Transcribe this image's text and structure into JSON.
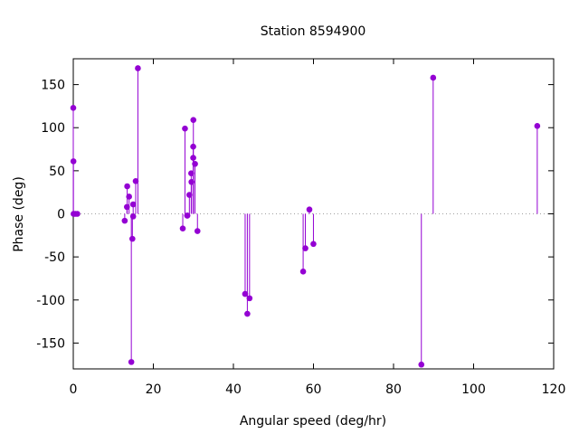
{
  "chart_data": {
    "type": "scatter",
    "style": "impulses-with-points",
    "title": "Station 8594900",
    "xlabel": "Angular speed (deg/hr)",
    "ylabel": "Phase (deg)",
    "xlim": [
      0,
      120
    ],
    "ylim": [
      -180,
      180
    ],
    "xticks": [
      0,
      20,
      40,
      60,
      80,
      100,
      120
    ],
    "yticks": [
      -150,
      -100,
      -50,
      0,
      50,
      100,
      150
    ],
    "grid": false,
    "zero_line": true,
    "color": "#9400d3",
    "series": [
      {
        "points": [
          {
            "x": 0.0,
            "y": 123
          },
          {
            "x": 0.04,
            "y": 61
          },
          {
            "x": 0.08,
            "y": 0
          },
          {
            "x": 0.5,
            "y": 0
          },
          {
            "x": 1.0,
            "y": 0
          },
          {
            "x": 12.85,
            "y": -8
          },
          {
            "x": 13.4,
            "y": 8
          },
          {
            "x": 13.47,
            "y": 32
          },
          {
            "x": 13.94,
            "y": 20
          },
          {
            "x": 14.5,
            "y": -172
          },
          {
            "x": 14.76,
            "y": -29
          },
          {
            "x": 14.96,
            "y": 11
          },
          {
            "x": 14.96,
            "y": -3
          },
          {
            "x": 15.59,
            "y": 38
          },
          {
            "x": 16.14,
            "y": 169
          },
          {
            "x": 27.35,
            "y": -17
          },
          {
            "x": 27.9,
            "y": 99
          },
          {
            "x": 28.44,
            "y": -2
          },
          {
            "x": 28.51,
            "y": -2
          },
          {
            "x": 29.0,
            "y": 22
          },
          {
            "x": 29.46,
            "y": 47
          },
          {
            "x": 29.53,
            "y": 37
          },
          {
            "x": 29.96,
            "y": 65
          },
          {
            "x": 29.96,
            "y": 78
          },
          {
            "x": 30.0,
            "y": 109
          },
          {
            "x": 30.41,
            "y": 58
          },
          {
            "x": 31.02,
            "y": -20
          },
          {
            "x": 42.93,
            "y": -93
          },
          {
            "x": 43.48,
            "y": -116
          },
          {
            "x": 44.03,
            "y": -98
          },
          {
            "x": 57.42,
            "y": -67
          },
          {
            "x": 57.97,
            "y": -40
          },
          {
            "x": 58.98,
            "y": 5
          },
          {
            "x": 59.99,
            "y": -35
          },
          {
            "x": 86.95,
            "y": -175
          },
          {
            "x": 89.9,
            "y": 158
          },
          {
            "x": 115.9,
            "y": 102
          }
        ]
      }
    ]
  }
}
